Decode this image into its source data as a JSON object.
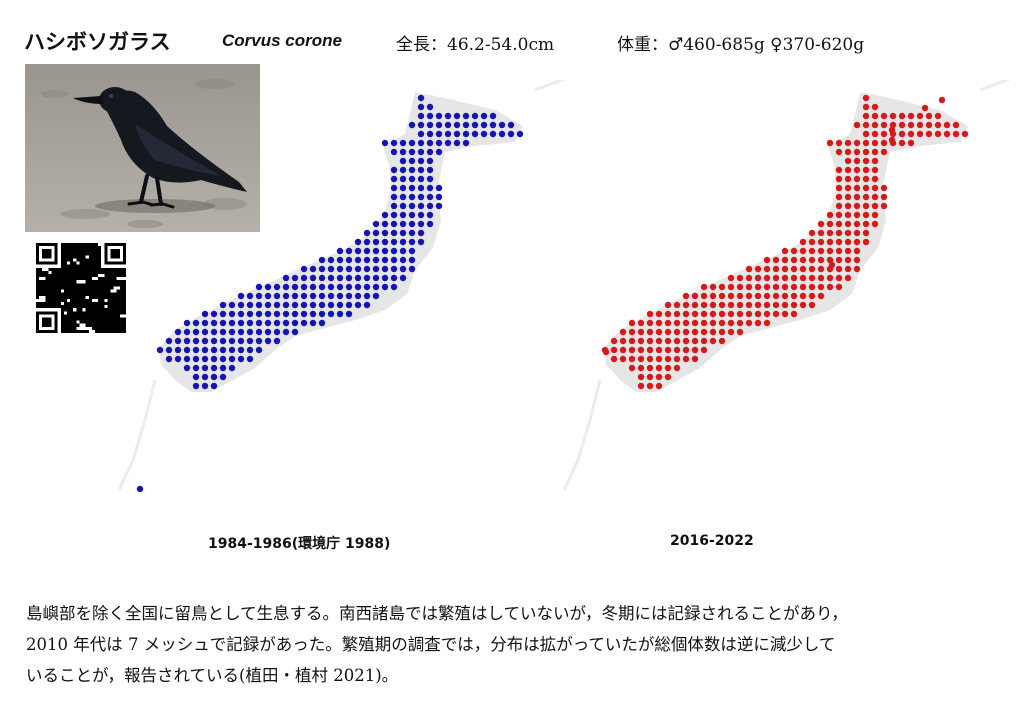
{
  "header": {
    "japanese_name": "ハシボソガラス",
    "scientific_name": "Corvus corone",
    "length": "全長：46.2-54.0cm",
    "weight": "体重：♂460-685g ♀370-620g"
  },
  "colors": {
    "past_dots": "#1414b4",
    "recent_dots": "#d41a1a",
    "land": "#e6e6e6"
  },
  "maps": [
    {
      "caption": "1984-1986(環境庁 1988)",
      "dot_color": "#1414b4"
    },
    {
      "caption": "2016-2022",
      "dot_color": "#d41a1a"
    }
  ],
  "description": [
    "島嶼部を除く全国に留鳥として生息する。南西諸島では繁殖はしていないが，冬期には記録されることがあり，",
    "2010 年代は 7 メッシュで記録があった。繁殖期の調査では，分布は拡がっていたが総個体数は逆に減少して",
    "いることが，報告されている(植田・植村  2021)。"
  ]
}
